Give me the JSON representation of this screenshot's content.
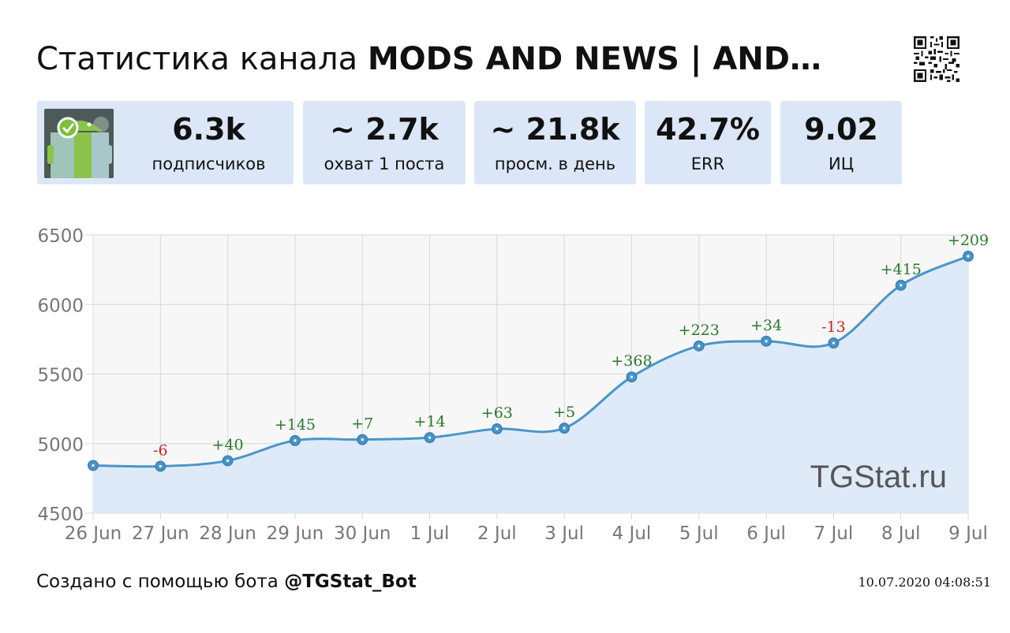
{
  "header": {
    "title_prefix": "Статистика канала ",
    "title_channel": "MODS AND NEWS | AND…"
  },
  "stats": [
    {
      "value": "6.3k",
      "label": "подписчиков"
    },
    {
      "value": "~ 2.7k",
      "label": "охват 1 поста"
    },
    {
      "value": "~ 21.8k",
      "label": "просм. в день"
    },
    {
      "value": "42.7%",
      "label": "ERR"
    },
    {
      "value": "9.02",
      "label": "ИЦ"
    }
  ],
  "footer": {
    "created_prefix": "Создано с помощью бота ",
    "bot": "@TGStat_Bot",
    "timestamp": "10.07.2020 04:08:51"
  },
  "chart_data": {
    "type": "area",
    "categories": [
      "26 Jun",
      "27 Jun",
      "28 Jun",
      "29 Jun",
      "30 Jun",
      "1 Jul",
      "2 Jul",
      "3 Jul",
      "4 Jul",
      "5 Jul",
      "6 Jul",
      "7 Jul",
      "8 Jul",
      "9 Jul"
    ],
    "values": [
      4843,
      4837,
      4877,
      5022,
      5029,
      5043,
      5106,
      5111,
      5479,
      5702,
      5736,
      5723,
      6138,
      6347
    ],
    "delta_labels": [
      "",
      "-6",
      "+40",
      "+145",
      "+7",
      "+14",
      "+63",
      "+5",
      "+368",
      "+223",
      "+34",
      "-13",
      "+415",
      "+209"
    ],
    "y_ticks": [
      "6500",
      "6000",
      "5500",
      "5000",
      "4500"
    ],
    "ylim": [
      4500,
      6500
    ],
    "watermark": "TGStat.ru",
    "grid": true,
    "colors": {
      "line": "#4a95c8",
      "fill": "#dde9f8",
      "positive": "#2a7a2a",
      "negative": "#c0281e"
    }
  }
}
